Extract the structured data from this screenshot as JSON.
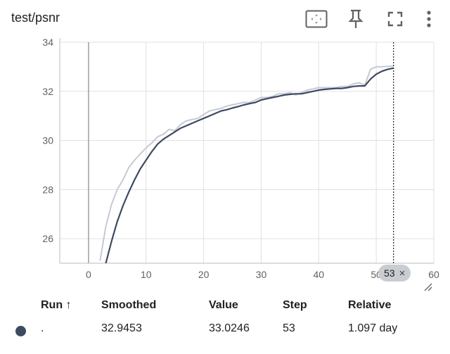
{
  "card": {
    "title": "test/psnr"
  },
  "toolbar": {
    "buttons": [
      {
        "name": "fit-domain-icon",
        "label": "Fit domain to data"
      },
      {
        "name": "pin-icon",
        "label": "Pin card"
      },
      {
        "name": "fullscreen-icon",
        "label": "Toggle full size"
      },
      {
        "name": "more-vert-icon",
        "label": "More options"
      }
    ]
  },
  "chart_data": {
    "type": "line",
    "title": "",
    "xlabel": "",
    "ylabel": "",
    "xlim": [
      -5,
      60
    ],
    "ylim": [
      25,
      34
    ],
    "x_ticks": [
      "0",
      "10",
      "20",
      "30",
      "40",
      "50",
      "60"
    ],
    "y_ticks": [
      "26",
      "28",
      "30",
      "32",
      "34"
    ],
    "grid": true,
    "cursor_step": 53,
    "series": [
      {
        "name": "",
        "role": "raw",
        "color": "#c5cad3",
        "x": [
          2,
          3,
          4,
          5,
          6,
          7,
          8,
          9,
          10,
          11,
          12,
          13,
          14,
          15,
          16,
          17,
          18,
          19,
          20,
          21,
          22,
          23,
          24,
          25,
          26,
          27,
          28,
          29,
          30,
          31,
          32,
          33,
          34,
          35,
          36,
          37,
          38,
          39,
          40,
          41,
          42,
          43,
          44,
          45,
          46,
          47,
          48,
          49,
          50,
          51,
          52,
          53
        ],
        "y": [
          25.1,
          26.5,
          27.4,
          28.0,
          28.4,
          28.9,
          29.2,
          29.45,
          29.7,
          29.9,
          30.15,
          30.25,
          30.45,
          30.4,
          30.65,
          30.8,
          30.85,
          30.9,
          31.05,
          31.2,
          31.25,
          31.3,
          31.4,
          31.45,
          31.5,
          31.55,
          31.55,
          31.65,
          31.75,
          31.75,
          31.8,
          31.9,
          31.9,
          31.95,
          31.85,
          31.95,
          32.05,
          32.1,
          32.15,
          32.15,
          32.15,
          32.15,
          32.2,
          32.2,
          32.3,
          32.35,
          32.25,
          32.9,
          33.0,
          33.0,
          33.02,
          33.0246
        ]
      },
      {
        "name": "",
        "role": "smoothed",
        "color": "#3d4a60",
        "x": [
          3,
          4,
          5,
          6,
          7,
          8,
          9,
          10,
          11,
          12,
          13,
          14,
          15,
          16,
          17,
          18,
          19,
          20,
          21,
          22,
          23,
          24,
          25,
          26,
          27,
          28,
          29,
          30,
          31,
          32,
          33,
          34,
          35,
          36,
          37,
          38,
          39,
          40,
          41,
          42,
          43,
          44,
          45,
          46,
          47,
          48,
          49,
          50,
          51,
          52,
          53
        ],
        "y": [
          25.0,
          25.9,
          26.7,
          27.35,
          27.9,
          28.4,
          28.85,
          29.2,
          29.55,
          29.85,
          30.05,
          30.2,
          30.35,
          30.5,
          30.6,
          30.7,
          30.8,
          30.9,
          31.0,
          31.1,
          31.2,
          31.25,
          31.32,
          31.38,
          31.45,
          31.5,
          31.55,
          31.65,
          31.7,
          31.75,
          31.8,
          31.85,
          31.88,
          31.9,
          31.9,
          31.95,
          32.0,
          32.05,
          32.08,
          32.1,
          32.12,
          32.12,
          32.15,
          32.2,
          32.22,
          32.22,
          32.5,
          32.7,
          32.82,
          32.9,
          32.9453
        ]
      }
    ]
  },
  "step_badge": {
    "value": "53",
    "close": "×"
  },
  "table": {
    "headers": {
      "run": "Run ↑",
      "smoothed": "Smoothed",
      "value": "Value",
      "step": "Step",
      "relative": "Relative"
    },
    "rows": [
      {
        "run": ".",
        "smoothed": "32.9453",
        "value": "33.0246",
        "step": "53",
        "relative": "1.097 day",
        "color": "#3d4a60"
      }
    ]
  }
}
